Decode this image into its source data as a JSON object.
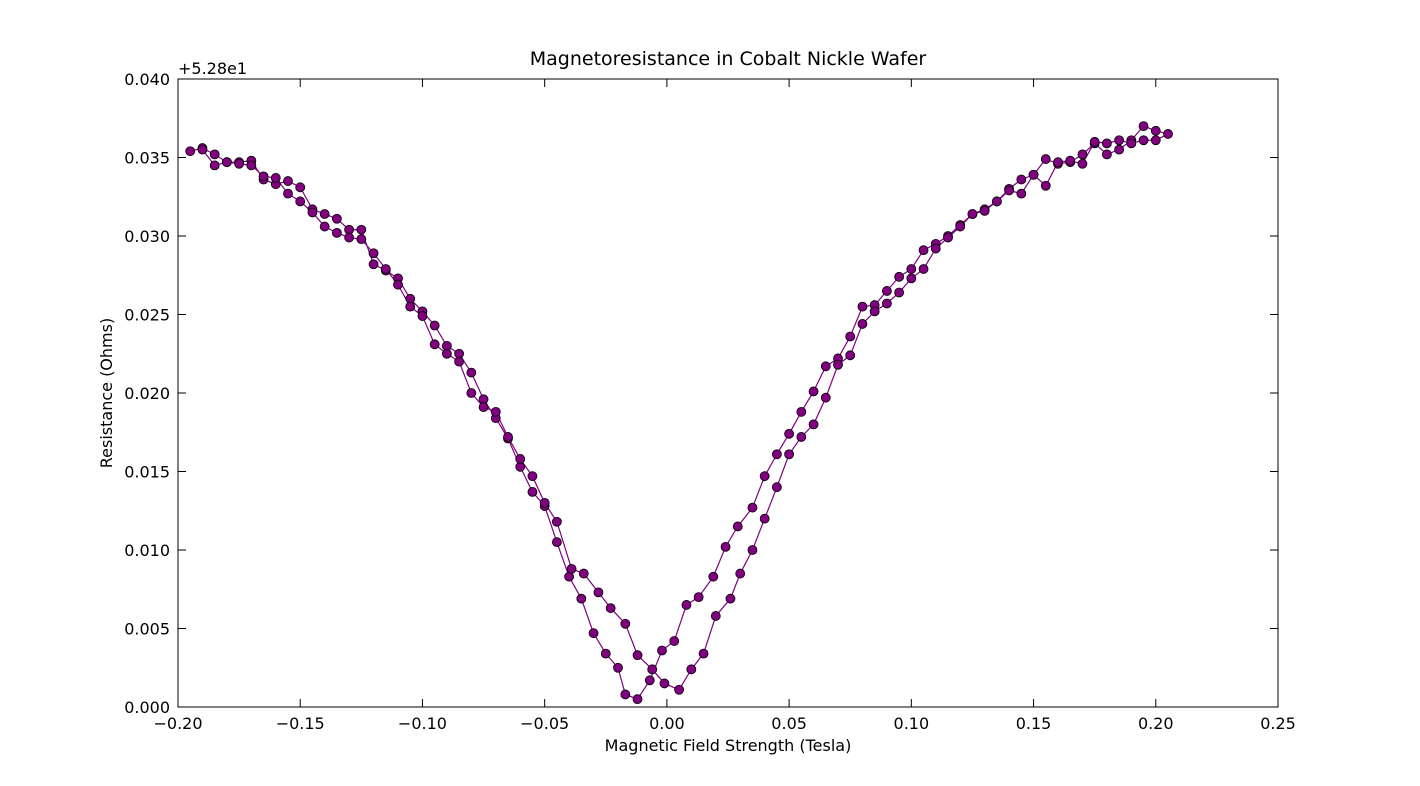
{
  "chart_data": {
    "type": "line",
    "title": "Magnetoresistance in Cobalt Nickle Wafer",
    "x_label": "Magnetic Field Strength (Tesla)",
    "y_label": "Resistance (Ohms)",
    "y_offset_label": "+5.28e1",
    "xlim": [
      -0.2,
      0.25
    ],
    "ylim": [
      0,
      0.04
    ],
    "xticks": [
      {
        "value": -0.2,
        "label": "−0.20"
      },
      {
        "value": -0.15,
        "label": "−0.15"
      },
      {
        "value": -0.1,
        "label": "−0.10"
      },
      {
        "value": -0.05,
        "label": "−0.05"
      },
      {
        "value": 0,
        "label": "0.00"
      },
      {
        "value": 0.05,
        "label": "0.05"
      },
      {
        "value": 0.1,
        "label": "0.10"
      },
      {
        "value": 0.15,
        "label": "0.15"
      },
      {
        "value": 0.2,
        "label": "0.20"
      },
      {
        "value": 0.25,
        "label": "0.25"
      }
    ],
    "yticks": [
      {
        "value": 0,
        "label": "0.000"
      },
      {
        "value": 0.005,
        "label": "0.005"
      },
      {
        "value": 0.01,
        "label": "0.010"
      },
      {
        "value": 0.015,
        "label": "0.015"
      },
      {
        "value": 0.02,
        "label": "0.020"
      },
      {
        "value": 0.025,
        "label": "0.025"
      },
      {
        "value": 0.03,
        "label": "0.030"
      },
      {
        "value": 0.035,
        "label": "0.035"
      },
      {
        "value": 0.04,
        "label": "0.040"
      }
    ],
    "grid": false,
    "x": [
      -0.195,
      -0.19,
      -0.185,
      -0.18,
      -0.175,
      -0.17,
      -0.165,
      -0.16,
      -0.155,
      -0.15,
      -0.145,
      -0.14,
      -0.135,
      -0.13,
      -0.125,
      -0.12,
      -0.115,
      -0.11,
      -0.105,
      -0.1,
      -0.095,
      -0.09,
      -0.085,
      -0.08,
      -0.075,
      -0.07,
      -0.065,
      -0.06,
      -0.055,
      -0.05,
      -0.045,
      -0.04,
      -0.035,
      -0.03,
      -0.025,
      -0.02,
      -0.017,
      -0.012,
      -0.007,
      -0.002,
      0.003,
      0.008,
      0.013,
      0.019,
      0.024,
      0.029,
      0.035,
      0.04,
      0.045,
      0.05,
      0.055,
      0.06,
      0.065,
      0.07,
      0.075,
      0.08,
      0.085,
      0.09,
      0.095,
      0.1,
      0.105,
      0.11,
      0.115,
      0.12,
      0.125,
      0.13,
      0.135,
      0.14,
      0.145,
      0.15,
      0.155,
      0.16,
      0.165,
      0.17,
      0.175,
      0.18,
      0.185,
      0.19,
      0.195,
      0.2,
      0.205,
      0.2,
      0.195,
      0.19,
      0.185,
      0.18,
      0.175,
      0.17,
      0.165,
      0.16,
      0.155,
      0.15,
      0.145,
      0.14,
      0.135,
      0.13,
      0.125,
      0.12,
      0.115,
      0.11,
      0.105,
      0.1,
      0.095,
      0.09,
      0.085,
      0.08,
      0.075,
      0.07,
      0.065,
      0.06,
      0.055,
      0.05,
      0.045,
      0.04,
      0.035,
      0.03,
      0.026,
      0.02,
      0.015,
      0.01,
      0.005,
      -0.001,
      -0.006,
      -0.012,
      -0.017,
      -0.023,
      -0.028,
      -0.034,
      -0.039,
      -0.045,
      -0.05,
      -0.055,
      -0.06,
      -0.065,
      -0.07,
      -0.075,
      -0.08,
      -0.085,
      -0.09,
      -0.095,
      -0.1,
      -0.105,
      -0.11,
      -0.115,
      -0.12,
      -0.125,
      -0.13,
      -0.135,
      -0.14,
      -0.145,
      -0.15,
      -0.155,
      -0.16,
      -0.165,
      -0.17,
      -0.175,
      -0.18,
      -0.185,
      -0.19
    ],
    "series": [
      {
        "color": "#800080",
        "marker_edge_color": "#000000",
        "values": [
          0.0354,
          0.0356,
          0.0352,
          0.0347,
          0.0347,
          0.0348,
          0.0336,
          0.0333,
          0.0335,
          0.0331,
          0.0317,
          0.0314,
          0.0311,
          0.0304,
          0.0304,
          0.0282,
          0.0278,
          0.0273,
          0.026,
          0.0252,
          0.0243,
          0.023,
          0.0225,
          0.0213,
          0.0196,
          0.0184,
          0.0171,
          0.0153,
          0.0137,
          0.0128,
          0.0105,
          0.0083,
          0.0069,
          0.0047,
          0.0034,
          0.0025,
          0.0008,
          0.0005,
          0.0017,
          0.0036,
          0.0042,
          0.0065,
          0.007,
          0.0083,
          0.0102,
          0.0115,
          0.0127,
          0.0147,
          0.0161,
          0.0174,
          0.0188,
          0.0201,
          0.0217,
          0.0222,
          0.0236,
          0.0255,
          0.0256,
          0.0265,
          0.0274,
          0.0279,
          0.0291,
          0.0295,
          0.03,
          0.0307,
          0.0314,
          0.0317,
          0.0322,
          0.033,
          0.0336,
          0.0339,
          0.0349,
          0.0346,
          0.0347,
          0.0352,
          0.0359,
          0.0352,
          0.0355,
          0.0361,
          0.037,
          0.0367,
          0.0365,
          0.0361,
          0.0361,
          0.0359,
          0.0361,
          0.0359,
          0.036,
          0.0346,
          0.0348,
          0.0347,
          0.0332,
          0.0339,
          0.0327,
          0.0329,
          0.0322,
          0.0316,
          0.0314,
          0.0306,
          0.0299,
          0.0292,
          0.0279,
          0.0273,
          0.0264,
          0.0257,
          0.0252,
          0.0244,
          0.0224,
          0.0218,
          0.0197,
          0.018,
          0.0172,
          0.0161,
          0.014,
          0.012,
          0.01,
          0.0085,
          0.0069,
          0.0058,
          0.0034,
          0.0024,
          0.0011,
          0.0015,
          0.0024,
          0.0033,
          0.0053,
          0.0063,
          0.0073,
          0.0085,
          0.0088,
          0.0118,
          0.013,
          0.0147,
          0.0158,
          0.0172,
          0.0188,
          0.0191,
          0.02,
          0.022,
          0.0225,
          0.0231,
          0.0249,
          0.0255,
          0.0269,
          0.0279,
          0.0289,
          0.0298,
          0.0299,
          0.0302,
          0.0306,
          0.0315,
          0.0322,
          0.0327,
          0.0337,
          0.0338,
          0.0345,
          0.0346,
          0.0347,
          0.0345,
          0.0355
        ]
      }
    ]
  }
}
